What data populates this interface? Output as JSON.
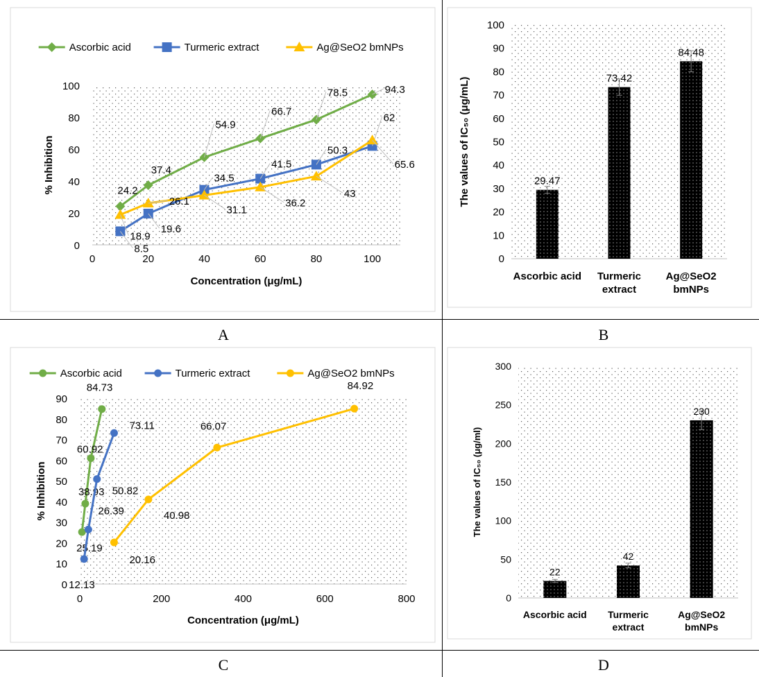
{
  "panels": {
    "a": "A",
    "b": "B",
    "c": "C",
    "d": "D"
  },
  "colors": {
    "green": "#70AD47",
    "blue": "#4472C4",
    "gold": "#FFC000",
    "bar": "#000000"
  },
  "chart_data": [
    {
      "type": "line",
      "x": [
        10,
        20,
        40,
        60,
        80,
        100
      ],
      "series": [
        {
          "name": "Ascorbic acid",
          "values": [
            24.2,
            37.4,
            54.9,
            66.7,
            78.5,
            94.3
          ],
          "labels": [
            "24.2",
            "37.4",
            "54.9",
            "66.7",
            "78.5",
            "94.3"
          ],
          "marker": "diamond",
          "color": "#70AD47"
        },
        {
          "name": "Turmeric extract",
          "values": [
            8.5,
            19.6,
            34.5,
            41.5,
            50.3,
            62
          ],
          "labels": [
            "8.5",
            "19.6",
            "34.5",
            "41.5",
            "50.3",
            "62"
          ],
          "marker": "square",
          "color": "#4472C4"
        },
        {
          "name": "Ag@SeO2 bmNPs",
          "values": [
            18.9,
            26.1,
            31.1,
            36.2,
            43,
            65.6
          ],
          "labels": [
            "18.9",
            "26.1",
            "31.1",
            "36.2",
            "43",
            "65.6"
          ],
          "marker": "triangle",
          "color": "#FFC000"
        }
      ],
      "xlabel": "Concentration (μg/mL)",
      "ylabel": "% Inhibition",
      "xlim": [
        0,
        110
      ],
      "ylim": [
        0,
        100
      ],
      "xticks": [
        "0",
        "20",
        "40",
        "60",
        "80",
        "100"
      ],
      "yticks": [
        "0",
        "20",
        "40",
        "60",
        "80",
        "100"
      ],
      "legend": "top"
    },
    {
      "type": "bar",
      "categories": [
        [
          "Ascorbic acid"
        ],
        [
          "Turmeric",
          "extract"
        ],
        [
          "Ag@SeO2",
          "bmNPs"
        ]
      ],
      "values": [
        29.47,
        73.42,
        84.48
      ],
      "labels": [
        "29.47",
        "73.42",
        "84.48"
      ],
      "errors": [
        1.5,
        3.5,
        4.5
      ],
      "ylabel": "The values of IC₅₀ (μg/mL)",
      "ylim": [
        0,
        100
      ],
      "yticks": [
        "0",
        "10",
        "20",
        "30",
        "40",
        "50",
        "60",
        "70",
        "80",
        "90",
        "100"
      ]
    },
    {
      "type": "scatter",
      "series": [
        {
          "name": "Ascorbic acid",
          "x": [
            5.4,
            13.5,
            27,
            54
          ],
          "values": [
            25.19,
            38.93,
            60.92,
            84.73
          ],
          "labels": [
            "25.19",
            "38.93",
            "60.92",
            "84.73"
          ],
          "color": "#70AD47"
        },
        {
          "name": "Turmeric extract",
          "x": [
            10.5,
            21,
            42,
            84
          ],
          "values": [
            12.13,
            26.39,
            50.82,
            73.11
          ],
          "labels": [
            "12.13",
            "26.39",
            "50.82",
            "73.11"
          ],
          "color": "#4472C4"
        },
        {
          "name": "Ag@SeO2 bmNPs",
          "x": [
            84,
            168,
            336,
            672
          ],
          "values": [
            20.16,
            40.98,
            66.07,
            84.92
          ],
          "labels": [
            "20.16",
            "40.98",
            "66.07",
            "84.92"
          ],
          "color": "#FFC000"
        }
      ],
      "xlabel": "Concentration (μg/mL)",
      "ylabel": "% Inhibition",
      "xlim": [
        0,
        800
      ],
      "ylim": [
        0,
        90
      ],
      "xticks": [
        "0",
        "200",
        "400",
        "600",
        "800"
      ],
      "yticks": [
        "0",
        "10",
        "20",
        "30",
        "40",
        "50",
        "60",
        "70",
        "80",
        "90"
      ],
      "legend": "top"
    },
    {
      "type": "bar",
      "categories": [
        [
          "Ascorbic acid"
        ],
        [
          "Turmeric",
          "extract"
        ],
        [
          "Ag@SeO2",
          "bmNPs"
        ]
      ],
      "values": [
        22,
        42,
        230
      ],
      "labels": [
        "22",
        "42",
        "230"
      ],
      "errors": [
        2,
        3,
        12
      ],
      "ylabel": "The values of IC₅₀ (μg/ml)",
      "ylim": [
        0,
        300
      ],
      "yticks": [
        "0",
        "50",
        "100",
        "150",
        "200",
        "250",
        "300"
      ]
    }
  ]
}
